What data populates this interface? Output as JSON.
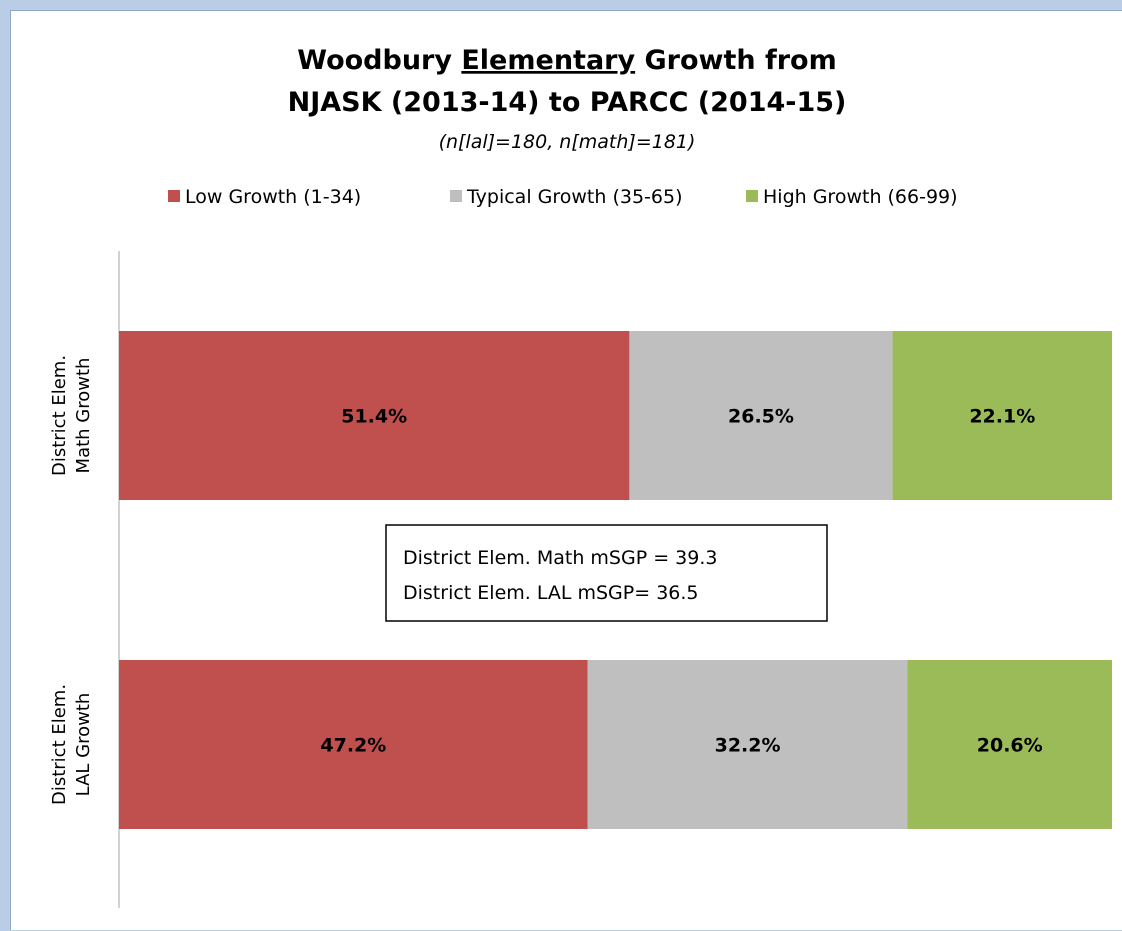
{
  "chart_data": {
    "type": "bar",
    "orientation": "horizontal",
    "stacked": "percent",
    "title_parts": [
      {
        "text": "Woodbury ",
        "underline": false
      },
      {
        "text": "Elementary",
        "underline": true
      },
      {
        "text": " Growth from",
        "underline": false
      }
    ],
    "title_line2": "NJASK (2013-14) to PARCC (2014-15)",
    "subtitle": "(n[lal]=180, n[math]=181)",
    "legend_position": "top",
    "categories": [
      [
        "District Elem.",
        "Math Growth"
      ],
      [
        "District Elem.",
        "LAL Growth"
      ]
    ],
    "series": [
      {
        "name": "Low Growth (1-34)",
        "color": "#c0504d",
        "values": [
          51.4,
          47.2
        ],
        "labels": [
          "51.4%",
          "47.2%"
        ]
      },
      {
        "name": "Typical Growth (35-65)",
        "color": "#bfbfbf",
        "values": [
          26.5,
          32.2
        ],
        "labels": [
          "26.5%",
          "32.2%"
        ]
      },
      {
        "name": "High Growth (66-99)",
        "color": "#9bbb59",
        "values": [
          22.1,
          20.6
        ],
        "labels": [
          "22.1%",
          "20.6%"
        ]
      }
    ],
    "xlim": [
      0,
      100
    ],
    "annotation": [
      "District Elem. Math mSGP = 39.3",
      "District Elem. LAL mSGP= 36.5"
    ]
  }
}
